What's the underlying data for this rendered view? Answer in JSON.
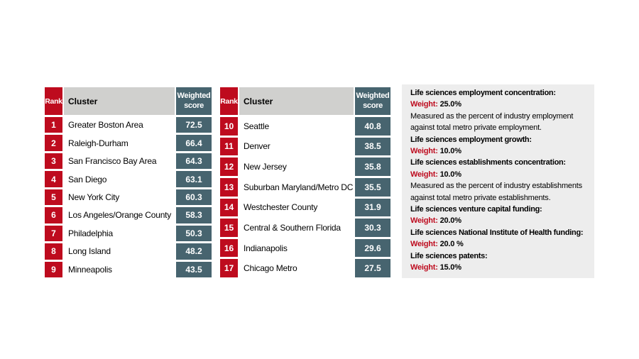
{
  "colors": {
    "red": "#be0b1e",
    "slate": "#47646f",
    "header_gray": "#d0d0ce",
    "panel_bg": "#ededed"
  },
  "tables": [
    {
      "header": {
        "rank": "Rank",
        "cluster": "Cluster",
        "score": "Weighted score"
      },
      "rows": [
        {
          "rank": "1",
          "cluster": "Greater Boston Area",
          "score": "72.5"
        },
        {
          "rank": "2",
          "cluster": "Raleigh-Durham",
          "score": "66.4"
        },
        {
          "rank": "3",
          "cluster": "San Francisco Bay Area",
          "score": "64.3"
        },
        {
          "rank": "4",
          "cluster": "San Diego",
          "score": "63.1"
        },
        {
          "rank": "5",
          "cluster": "New York City",
          "score": "60.3"
        },
        {
          "rank": "6",
          "cluster": "Los Angeles/Orange County",
          "score": "58.3"
        },
        {
          "rank": "7",
          "cluster": "Philadelphia",
          "score": "50.3"
        },
        {
          "rank": "8",
          "cluster": "Long Island",
          "score": "48.2"
        },
        {
          "rank": "9",
          "cluster": "Minneapolis",
          "score": "43.5"
        }
      ]
    },
    {
      "header": {
        "rank": "Rank",
        "cluster": "Cluster",
        "score": "Weighted score"
      },
      "rows": [
        {
          "rank": "10",
          "cluster": "Seattle",
          "score": "40.8"
        },
        {
          "rank": "11",
          "cluster": "Denver",
          "score": "38.5"
        },
        {
          "rank": "12",
          "cluster": "New Jersey",
          "score": "35.8"
        },
        {
          "rank": "13",
          "cluster": "Suburban Maryland/Metro DC",
          "score": "35.5"
        },
        {
          "rank": "14",
          "cluster": "Westchester County",
          "score": "31.9"
        },
        {
          "rank": "15",
          "cluster": "Central & Southern Florida",
          "score": "30.3"
        },
        {
          "rank": "16",
          "cluster": "Indianapolis",
          "score": "29.6"
        },
        {
          "rank": "17",
          "cluster": "Chicago Metro",
          "score": "27.5"
        }
      ]
    }
  ],
  "panel": {
    "sections": [
      {
        "title": "Life sciences employment concentration:",
        "weight_label": "Weight:",
        "weight": "25.0%",
        "desc": "Measured as the percent of industry employment against total metro private employment."
      },
      {
        "title": "Life sciences employment growth:",
        "weight_label": "Weight:",
        "weight": "10.0%"
      },
      {
        "title": "Life sciences establishments concentration:",
        "weight_label": "Weight:",
        "weight": "10.0%",
        "desc": "Measured as the percent of industry establishments against total metro private establishments."
      },
      {
        "title": "Life sciences venture capital funding:",
        "weight_label": "Weight:",
        "weight": "20.0%"
      },
      {
        "title": "Life sciences National Institute of Health funding:",
        "weight_label": "Weight:",
        "weight": "20.0 %"
      },
      {
        "title": "Life sciences patents:",
        "weight_label": "Weight:",
        "weight": "15.0%"
      }
    ]
  },
  "chart_data": {
    "type": "table",
    "title": "Life sciences cluster rankings by weighted score",
    "columns": [
      "Rank",
      "Cluster",
      "Weighted score"
    ],
    "rows": [
      [
        1,
        "Greater Boston Area",
        72.5
      ],
      [
        2,
        "Raleigh-Durham",
        66.4
      ],
      [
        3,
        "San Francisco Bay Area",
        64.3
      ],
      [
        4,
        "San Diego",
        63.1
      ],
      [
        5,
        "New York City",
        60.3
      ],
      [
        6,
        "Los Angeles/Orange County",
        58.3
      ],
      [
        7,
        "Philadelphia",
        50.3
      ],
      [
        8,
        "Long Island",
        48.2
      ],
      [
        9,
        "Minneapolis",
        43.5
      ],
      [
        10,
        "Seattle",
        40.8
      ],
      [
        11,
        "Denver",
        38.5
      ],
      [
        12,
        "New Jersey",
        35.8
      ],
      [
        13,
        "Suburban Maryland/Metro DC",
        35.5
      ],
      [
        14,
        "Westchester County",
        31.9
      ],
      [
        15,
        "Central & Southern Florida",
        30.3
      ],
      [
        16,
        "Indianapolis",
        29.6
      ],
      [
        17,
        "Chicago Metro",
        27.5
      ]
    ],
    "weights": {
      "Life sciences employment concentration": 25.0,
      "Life sciences employment growth": 10.0,
      "Life sciences establishments concentration": 10.0,
      "Life sciences venture capital funding": 20.0,
      "Life sciences National Institute of Health funding": 20.0,
      "Life sciences patents": 15.0
    }
  }
}
